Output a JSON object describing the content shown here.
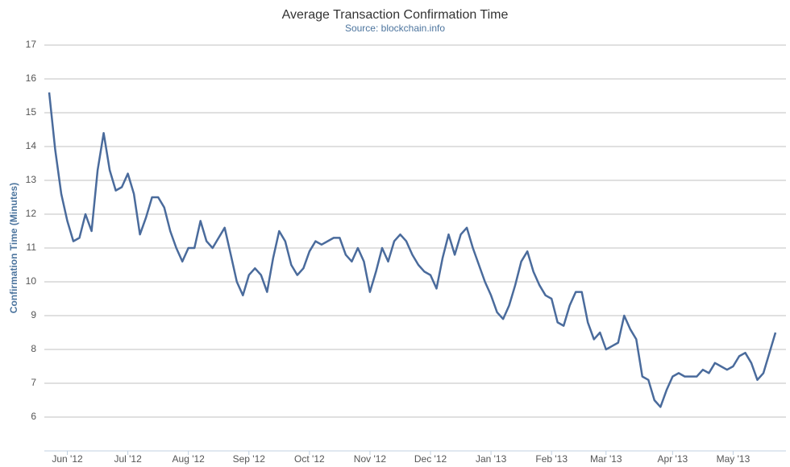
{
  "chart_data": {
    "type": "line",
    "title": "Average Transaction Confirmation Time",
    "subtitle": "Source: blockchain.info",
    "y_label": "Confirmation Time (Minutes)",
    "ylim": [
      5,
      17
    ],
    "yticks": [
      6,
      7,
      8,
      9,
      10,
      11,
      12,
      13,
      14,
      15,
      16,
      17
    ],
    "grid": true,
    "categories": [
      null,
      null,
      null,
      "Jun '12",
      null,
      null,
      null,
      null,
      null,
      null,
      null,
      null,
      null,
      "Jul '12",
      null,
      null,
      null,
      null,
      null,
      null,
      null,
      null,
      null,
      "Aug '12",
      null,
      null,
      null,
      null,
      null,
      null,
      null,
      null,
      null,
      "Sep '12",
      null,
      null,
      null,
      null,
      null,
      null,
      null,
      null,
      null,
      "Oct '12",
      null,
      null,
      null,
      null,
      null,
      null,
      null,
      null,
      null,
      "Nov '12",
      null,
      null,
      null,
      null,
      null,
      null,
      null,
      null,
      null,
      "Dec '12",
      null,
      null,
      null,
      null,
      null,
      null,
      null,
      null,
      null,
      "Jan '13",
      null,
      null,
      null,
      null,
      null,
      null,
      null,
      null,
      null,
      "Feb '13",
      null,
      null,
      null,
      null,
      null,
      null,
      null,
      null,
      "Mar '13",
      null,
      null,
      null,
      null,
      null,
      null,
      null,
      null,
      null,
      null,
      "Apr '13",
      null,
      null,
      null,
      null,
      null,
      null,
      null,
      null,
      null,
      "May '13",
      null,
      null,
      null,
      null,
      null,
      null,
      null
    ],
    "series": [
      {
        "name": "Confirmation Time",
        "color": "#4a6b9c",
        "values": [
          15.6,
          13.9,
          12.6,
          11.8,
          11.2,
          11.3,
          12.0,
          11.5,
          13.3,
          14.4,
          13.3,
          12.7,
          12.8,
          13.2,
          12.6,
          11.4,
          11.9,
          12.5,
          12.5,
          12.2,
          11.5,
          11.0,
          10.6,
          11.0,
          11.0,
          11.8,
          11.2,
          11.0,
          11.3,
          11.6,
          10.8,
          10.0,
          9.6,
          10.2,
          10.4,
          10.2,
          9.7,
          10.7,
          11.5,
          11.2,
          10.5,
          10.2,
          10.4,
          10.9,
          11.2,
          11.1,
          11.2,
          11.3,
          11.3,
          10.8,
          10.6,
          11.0,
          10.6,
          9.7,
          10.3,
          11.0,
          10.6,
          11.2,
          11.4,
          11.2,
          10.8,
          10.5,
          10.3,
          10.2,
          9.8,
          10.7,
          11.4,
          10.8,
          11.4,
          11.6,
          11.0,
          10.5,
          10.0,
          9.6,
          9.1,
          8.9,
          9.3,
          9.9,
          10.6,
          10.9,
          10.3,
          9.9,
          9.6,
          9.5,
          8.8,
          8.7,
          9.3,
          9.7,
          9.7,
          8.8,
          8.3,
          8.5,
          8.0,
          8.1,
          8.2,
          9.0,
          8.6,
          8.3,
          7.2,
          7.1,
          6.5,
          6.3,
          6.8,
          7.2,
          7.3,
          7.2,
          7.2,
          7.2,
          7.4,
          7.3,
          7.6,
          7.5,
          7.4,
          7.5,
          7.8,
          7.9,
          7.6,
          7.1,
          7.3,
          7.9,
          8.5
        ]
      }
    ]
  }
}
